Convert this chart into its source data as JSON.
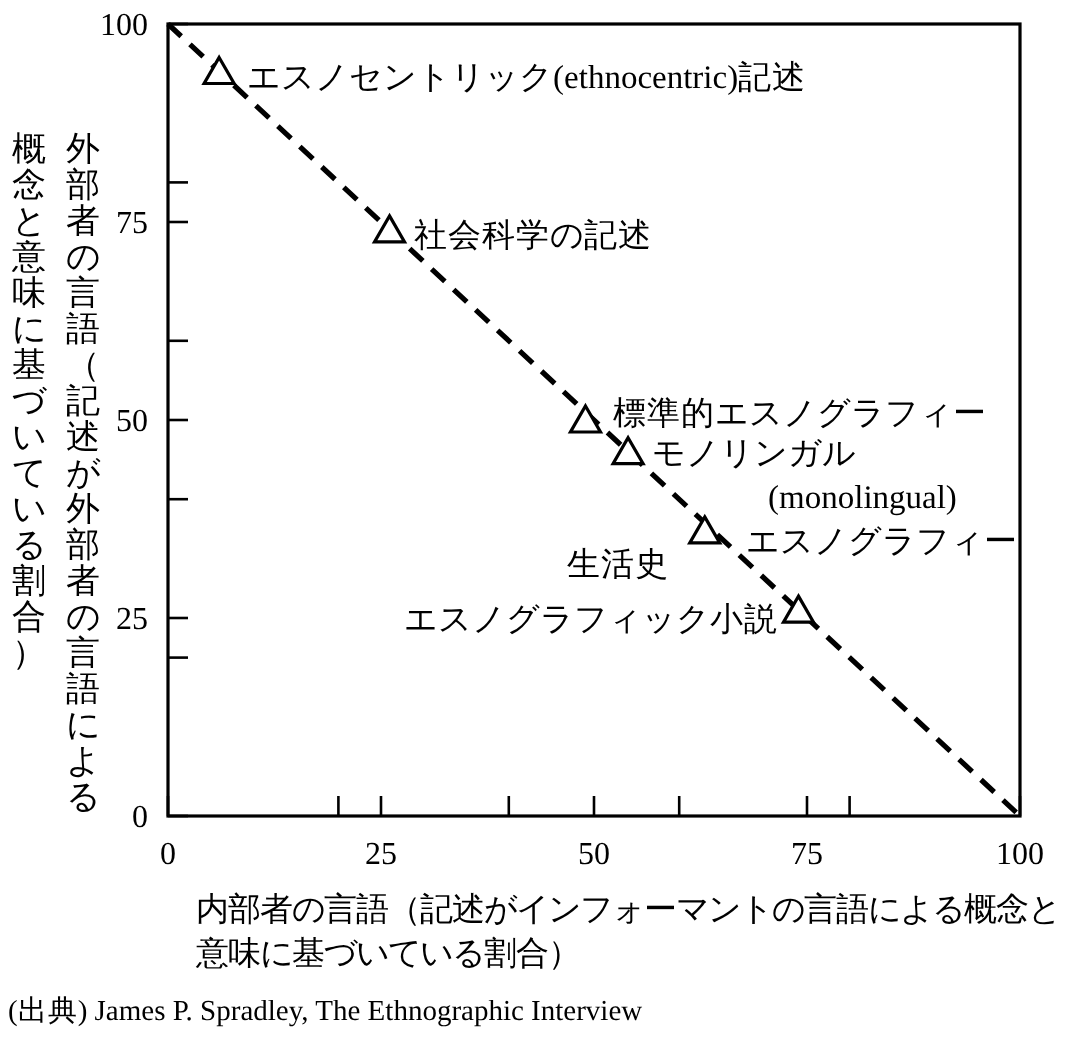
{
  "chart_data": {
    "type": "scatter",
    "xlabel": "内部者の言語（記述がインフォーマントの言語による概念と意味に基づいている割合）",
    "ylabel": "外部者の言語（記述が外部者の言語による概念と意味に基づいている割合）",
    "xlim": [
      0,
      100
    ],
    "ylim": [
      0,
      100
    ],
    "xticks": [
      0,
      {
        "value": 20,
        "label": null
      },
      25,
      {
        "value": 40,
        "label": null
      },
      50,
      {
        "value": 60,
        "label": null
      },
      75,
      {
        "value": 80,
        "label": null
      },
      100
    ],
    "yticks": [
      0,
      {
        "value": 20,
        "label": null
      },
      25,
      {
        "value": 40,
        "label": null
      },
      50,
      {
        "value": 60,
        "label": null
      },
      75,
      {
        "value": 80,
        "label": null
      },
      100
    ],
    "grid": false,
    "legend": false,
    "series": [
      {
        "type": "line",
        "color": "#000000",
        "x": [
          0,
          100
        ],
        "values": [
          100,
          0
        ],
        "line_style": "dashed",
        "marker": "none"
      },
      {
        "type": "scatter",
        "color": "#000000",
        "x": [
          6,
          26,
          49,
          54,
          63,
          74
        ],
        "values": [
          94,
          74,
          50,
          46,
          36,
          26
        ],
        "marker": "triangle"
      }
    ],
    "annotations": [
      {
        "text": "エスノセントリック(ethnocentric)記述",
        "x": 6,
        "y": 94
      },
      {
        "text": "社会科学の記述",
        "x": 26,
        "y": 74
      },
      {
        "text": "標準的エスノグラフィー",
        "x": 49,
        "y": 50
      },
      {
        "text": "モノリンガル (monolingual) エスノグラフィー",
        "x": 54,
        "y": 46
      },
      {
        "text": "生活史",
        "x": 63,
        "y": 36
      },
      {
        "text": "エスノグラフィック小説",
        "x": 74,
        "y": 26
      },
      "(出典) James P. Spradley, The Ethnographic Interview"
    ]
  }
}
